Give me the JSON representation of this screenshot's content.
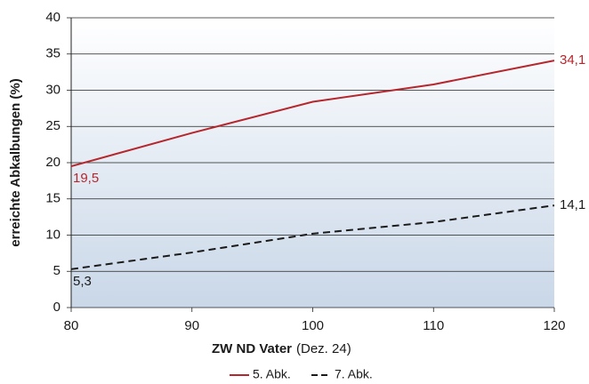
{
  "chart_data": {
    "type": "line",
    "x": [
      80,
      90,
      100,
      110,
      120
    ],
    "xlim": [
      80,
      120
    ],
    "xticks": [
      80,
      90,
      100,
      110,
      120
    ],
    "ylim": [
      0,
      40
    ],
    "yticks": [
      0,
      5,
      10,
      15,
      20,
      25,
      30,
      35,
      40
    ],
    "grid": true,
    "y_label": "erreichte Abkalbungen (%)",
    "x_label": "ZW ND Vater",
    "x_label_note": "(Dez. 24)",
    "legend": "bottom",
    "series": [
      {
        "name": "5. Abk.",
        "color": "#b5272d",
        "dash": "solid",
        "values": [
          19.5,
          24.1,
          28.4,
          30.8,
          34.1
        ],
        "value_labels": [
          "19,5",
          null,
          null,
          null,
          "34,1"
        ]
      },
      {
        "name": "7. Abk.",
        "color": "#1a1a1a",
        "dash": "dashed",
        "values": [
          5.3,
          7.6,
          10.2,
          11.8,
          14.1
        ],
        "value_labels": [
          "5,3",
          null,
          null,
          null,
          "14,1"
        ]
      }
    ]
  }
}
